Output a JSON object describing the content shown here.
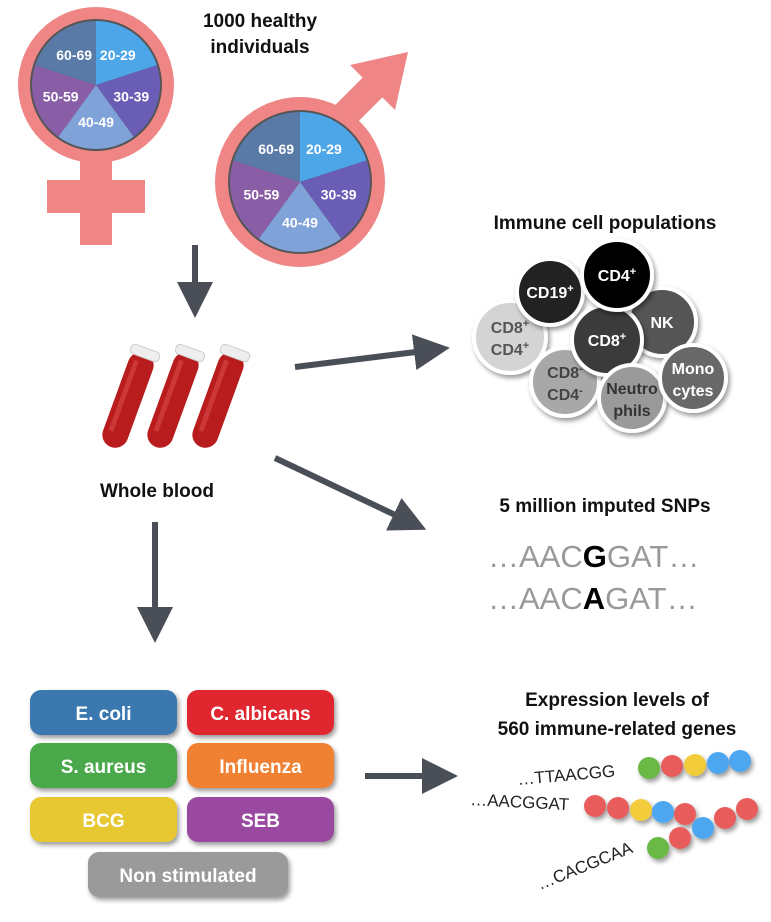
{
  "population": {
    "title_line1": "1000 healthy",
    "title_line2": "individuals",
    "age_groups": [
      "20-29",
      "30-39",
      "40-49",
      "50-59",
      "60-69"
    ],
    "age_colors": [
      "#4da6e8",
      "#6a5db5",
      "#7fa2d8",
      "#8a5ea6",
      "#597aa6"
    ],
    "symbol_color": "#ef8585"
  },
  "blood": {
    "label": "Whole blood",
    "tube_color": "#b81c1c"
  },
  "immune": {
    "title": "Immune cell populations",
    "cells": [
      {
        "line1": "CD19",
        "sup1": "+",
        "line2": "",
        "sup2": "",
        "color": "#222222",
        "text": "#ffffff"
      },
      {
        "line1": "CD4",
        "sup1": "+",
        "line2": "",
        "sup2": "",
        "color": "#000000",
        "text": "#ffffff"
      },
      {
        "line1": "NK",
        "sup1": "",
        "line2": "",
        "sup2": "",
        "color": "#555555",
        "text": "#ffffff"
      },
      {
        "line1": "CD8",
        "sup1": "+",
        "line2": "",
        "sup2": "",
        "color": "#3a3a3a",
        "text": "#ffffff"
      },
      {
        "line1": "CD8",
        "sup1": "+",
        "line2": "CD4",
        "sup2": "+",
        "color": "#d4d4d4",
        "text": "#555555"
      },
      {
        "line1": "CD8",
        "sup1": "-",
        "line2": "CD4",
        "sup2": "-",
        "color": "#a8a8a8",
        "text": "#444444"
      },
      {
        "line1": "Neutro",
        "sup1": "",
        "line2": "phils",
        "sup2": "",
        "color": "#9a9a9a",
        "text": "#333333"
      },
      {
        "line1": "Mono",
        "sup1": "",
        "line2": "cytes",
        "sup2": "",
        "color": "#686868",
        "text": "#ffffff"
      }
    ]
  },
  "snps": {
    "title": "5 million imputed SNPs",
    "rows": [
      {
        "pre": "…",
        "left": "AAC",
        "allele": "G",
        "right": "GAT",
        "post": "…"
      },
      {
        "pre": "…",
        "left": "AAC",
        "allele": "A",
        "right": "GAT",
        "post": "…"
      }
    ]
  },
  "stimuli": [
    {
      "label": "E. coli",
      "color": "#3a78b0"
    },
    {
      "label": "C. albicans",
      "color": "#e0282e"
    },
    {
      "label": "S. aureus",
      "color": "#4aa84a"
    },
    {
      "label": "Influenza",
      "color": "#f08030"
    },
    {
      "label": "BCG",
      "color": "#e8c832"
    },
    {
      "label": "SEB",
      "color": "#9a4aa0"
    },
    {
      "label": "Non stimulated",
      "color": "#9a9a9a"
    }
  ],
  "expression": {
    "title_line1": "Expression levels of",
    "title_line2": "560 immune-related genes",
    "sequences": [
      "…TTAACGG",
      "…AACGGAT",
      "…CACGCAA"
    ],
    "bead_colors": {
      "green": "#6ab844",
      "red": "#e85c5c",
      "yellow": "#f2cc3a",
      "blue": "#4da6f0"
    }
  },
  "arrow_color": "#4a4e57"
}
